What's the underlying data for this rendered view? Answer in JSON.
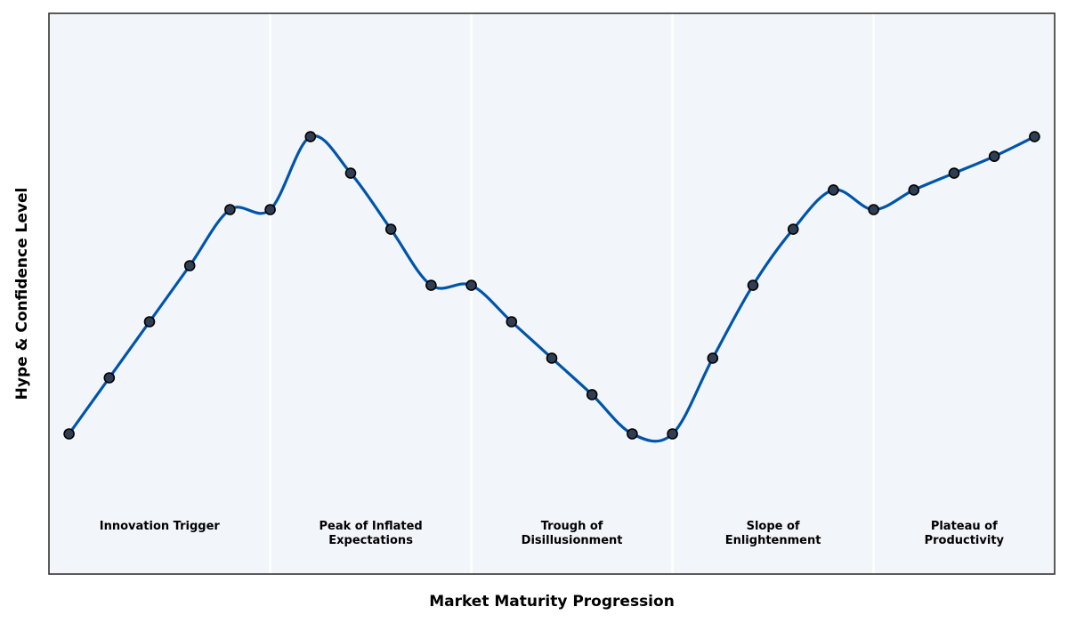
{
  "chart_data": {
    "type": "line",
    "title": "",
    "xlabel": "Market Maturity Progression",
    "ylabel": "Hype & Confidence Level",
    "xlim": [
      0.5,
      25.5
    ],
    "ylim": [
      0,
      100
    ],
    "grid": false,
    "x_ticks_visible": false,
    "y_ticks_visible": false,
    "colors": {
      "line": "#0055aa",
      "marker_fill": "#2f3e52",
      "marker_edge": "#000000",
      "plot_background": "#f2f6fa",
      "divider": "#ffffff",
      "frame": "#333333"
    },
    "phases": [
      {
        "lines": [
          "Innovation Trigger"
        ],
        "start": 0.5,
        "end": 6.0
      },
      {
        "lines": [
          "Peak of Inflated",
          "Expectations"
        ],
        "start": 6.0,
        "end": 11.0
      },
      {
        "lines": [
          "Trough of",
          "Disillusionment"
        ],
        "start": 11.0,
        "end": 16.0
      },
      {
        "lines": [
          "Slope of",
          "Enlightenment"
        ],
        "start": 16.0,
        "end": 21.0
      },
      {
        "lines": [
          "Plateau of",
          "Productivity"
        ],
        "start": 21.0,
        "end": 25.5
      }
    ],
    "series": [
      {
        "x": [
          1,
          2,
          3,
          4,
          5,
          6,
          7,
          8,
          9,
          10,
          11,
          12,
          13,
          14,
          15,
          16,
          17,
          18,
          19,
          20,
          21,
          22,
          23,
          24,
          25
        ],
        "values": [
          25,
          35,
          45,
          55,
          65,
          65,
          78,
          71.5,
          61.5,
          51.5,
          51.5,
          45,
          38.5,
          32,
          25,
          25,
          38.5,
          51.5,
          61.5,
          68.5,
          65,
          68.5,
          71.5,
          74.5,
          78
        ]
      }
    ]
  }
}
